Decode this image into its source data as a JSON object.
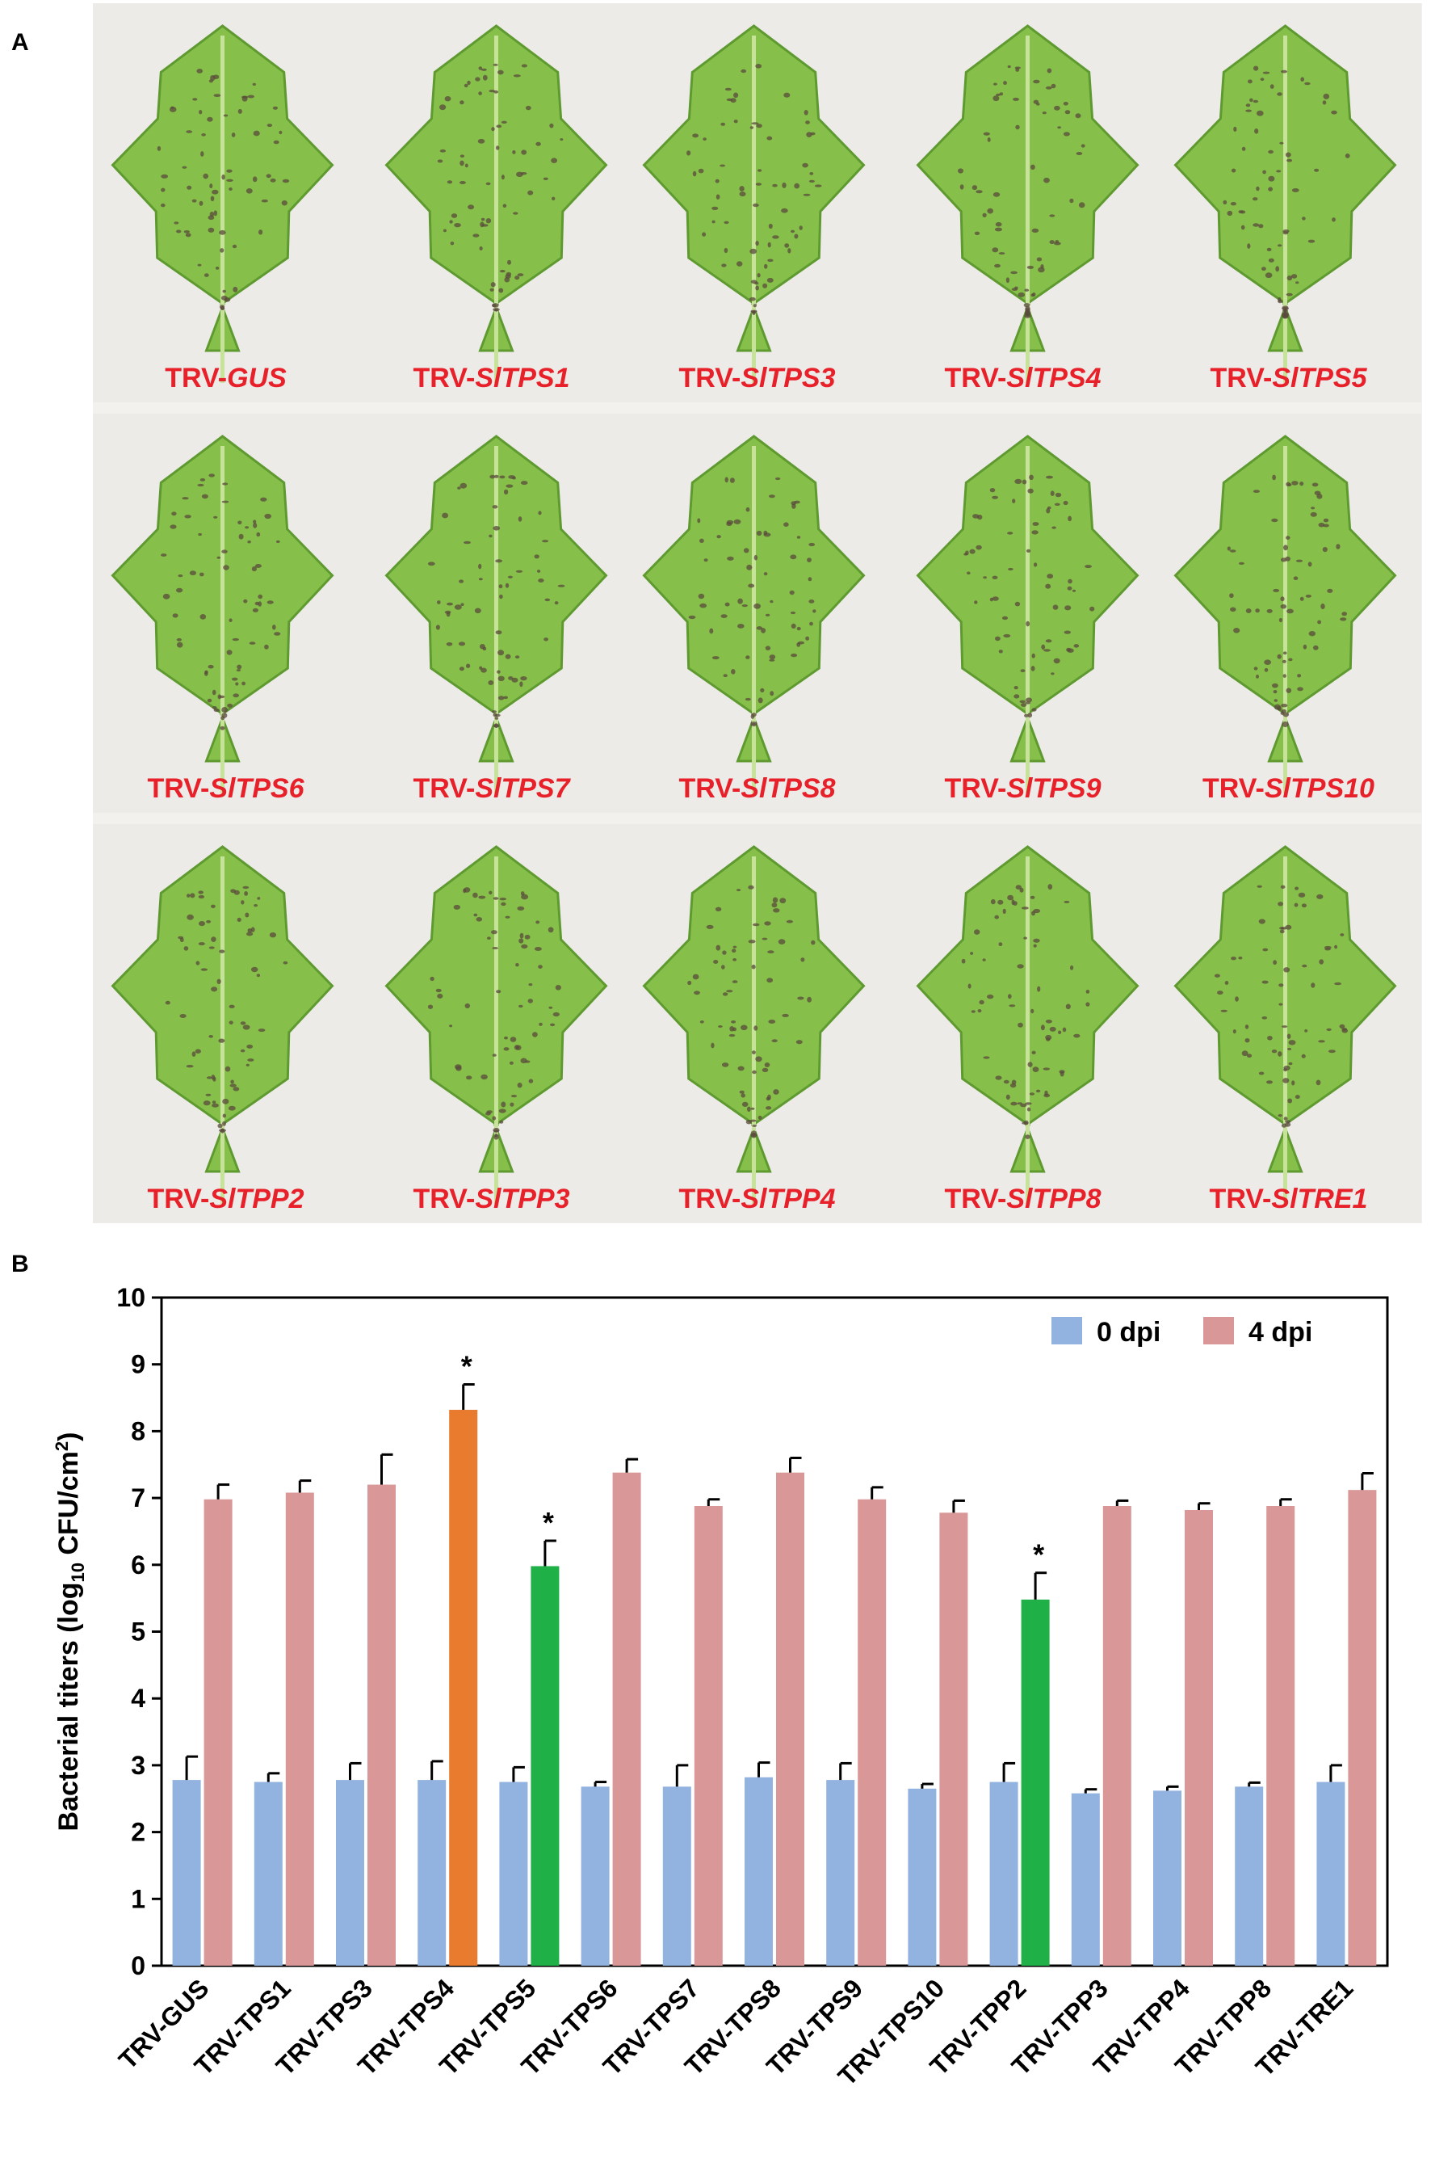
{
  "panel_a": {
    "label": "A",
    "rows": [
      [
        {
          "prefix": "TRV-",
          "gene": "GUS"
        },
        {
          "prefix": "TRV-",
          "gene": "SlTPS1"
        },
        {
          "prefix": "TRV-",
          "gene": "SlTPS3"
        },
        {
          "prefix": "TRV-",
          "gene": "SlTPS4"
        },
        {
          "prefix": "TRV-",
          "gene": "SlTPS5"
        }
      ],
      [
        {
          "prefix": "TRV-",
          "gene": "SlTPS6"
        },
        {
          "prefix": "TRV-",
          "gene": "SlTPS7"
        },
        {
          "prefix": "TRV-",
          "gene": "SlTPS8"
        },
        {
          "prefix": "TRV-",
          "gene": "SlTPS9"
        },
        {
          "prefix": "TRV-",
          "gene": "SlTPS10"
        }
      ],
      [
        {
          "prefix": "TRV-",
          "gene": "SlTPP2"
        },
        {
          "prefix": "TRV-",
          "gene": "SlTPP3"
        },
        {
          "prefix": "TRV-",
          "gene": "SlTPP4"
        },
        {
          "prefix": "TRV-",
          "gene": "SlTPP8"
        },
        {
          "prefix": "TRV-",
          "gene": "SlTRE1"
        }
      ]
    ],
    "colors": {
      "caption": "#e8202a",
      "leaf": "#86c04a",
      "leaf_dark": "#5f9a31",
      "lesion": "#5a4a3c",
      "background": "#ecebe7"
    }
  },
  "panel_b": {
    "label": "B",
    "chart_data": {
      "type": "bar",
      "title": "",
      "xlabel": "",
      "ylabel_main": "Bacterial titers (log",
      "ylabel_sub": "10",
      "ylabel_unit": " CFU/cm",
      "ylabel_sup": "2",
      "ylabel_close": ")",
      "ylim": [
        0,
        10
      ],
      "yticks": [
        "0",
        "1",
        "2",
        "3",
        "4",
        "5",
        "6",
        "7",
        "8",
        "9",
        "10"
      ],
      "categories": [
        "TRV-GUS",
        "TRV-TPS1",
        "TRV-TPS3",
        "TRV-TPS4",
        "TRV-TPS5",
        "TRV-TPS6",
        "TRV-TPS7",
        "TRV-TPS8",
        "TRV-TPS9",
        "TRV-TPS10",
        "TRV-TPP2",
        "TRV-TPP3",
        "TRV-TPP4",
        "TRV-TPP8",
        "TRV-TRE1"
      ],
      "series": [
        {
          "name": "0 dpi",
          "color": "#92b3e0",
          "values": [
            2.78,
            2.75,
            2.78,
            2.78,
            2.75,
            2.68,
            2.68,
            2.82,
            2.78,
            2.65,
            2.75,
            2.58,
            2.62,
            2.68,
            2.75
          ],
          "errors": [
            0.35,
            0.13,
            0.25,
            0.28,
            0.22,
            0.07,
            0.32,
            0.22,
            0.25,
            0.07,
            0.28,
            0.06,
            0.06,
            0.06,
            0.25
          ]
        },
        {
          "name": "4 dpi",
          "color": "#d99797",
          "values": [
            6.98,
            7.08,
            7.2,
            8.32,
            5.98,
            7.38,
            6.88,
            7.38,
            6.98,
            6.78,
            5.48,
            6.88,
            6.82,
            6.88,
            7.12
          ],
          "errors": [
            0.22,
            0.18,
            0.45,
            0.38,
            0.38,
            0.2,
            0.1,
            0.22,
            0.18,
            0.18,
            0.4,
            0.08,
            0.1,
            0.1,
            0.25
          ],
          "highlights": {
            "3": "#e87b2e",
            "4": "#1fb048",
            "10": "#1fb048"
          }
        }
      ],
      "significance": {
        "marker": "*",
        "indices": [
          3,
          4,
          10
        ]
      },
      "legend": {
        "placement": "top-right"
      },
      "grid": false
    }
  }
}
